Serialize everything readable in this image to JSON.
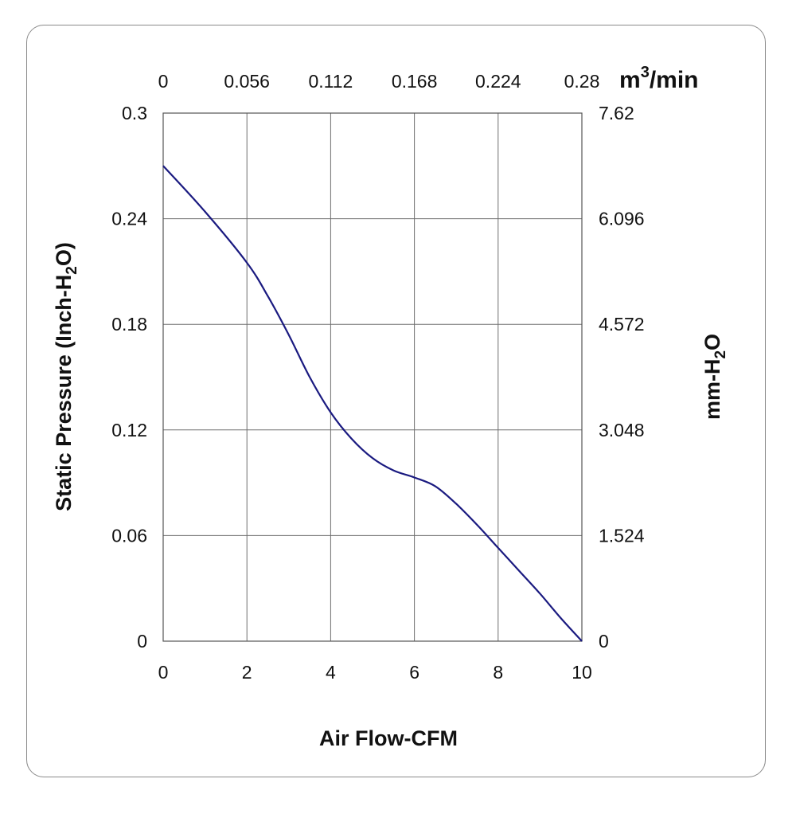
{
  "chart_data": {
    "type": "line",
    "title": "",
    "xlabel": "Air Flow-CFM",
    "ylabel_main": "Static Pressure (Inch-H",
    "ylabel_sub": "2",
    "ylabel_end": "O)",
    "y2label_main": "mm-H",
    "y2label_sub": "2",
    "y2label_end": "O",
    "x2label_main": "m",
    "x2label_sup": "3",
    "x2label_end": "/min",
    "xlim": [
      0,
      10
    ],
    "ylim": [
      0,
      0.3
    ],
    "x_ticks": [
      "0",
      "2",
      "4",
      "6",
      "8",
      "10"
    ],
    "y_ticks": [
      "0",
      "0.06",
      "0.12",
      "0.18",
      "0.24",
      "0.3"
    ],
    "x2_ticks": [
      "0",
      "0.056",
      "0.112",
      "0.168",
      "0.224",
      "0.28"
    ],
    "y2_ticks": [
      "0",
      "1.524",
      "3.048",
      "4.572",
      "6.096",
      "7.62"
    ],
    "grid": true,
    "line_color": "#1a1a80",
    "series": [
      {
        "name": "",
        "x": [
          0,
          1,
          2,
          2.5,
          3,
          3.5,
          4,
          4.5,
          5,
          5.5,
          6,
          6.5,
          7,
          7.5,
          8,
          8.5,
          9,
          9.5,
          10
        ],
        "y": [
          0.27,
          0.244,
          0.215,
          0.196,
          0.174,
          0.15,
          0.13,
          0.115,
          0.104,
          0.097,
          0.093,
          0.088,
          0.078,
          0.066,
          0.053,
          0.04,
          0.027,
          0.013,
          0
        ]
      }
    ]
  }
}
